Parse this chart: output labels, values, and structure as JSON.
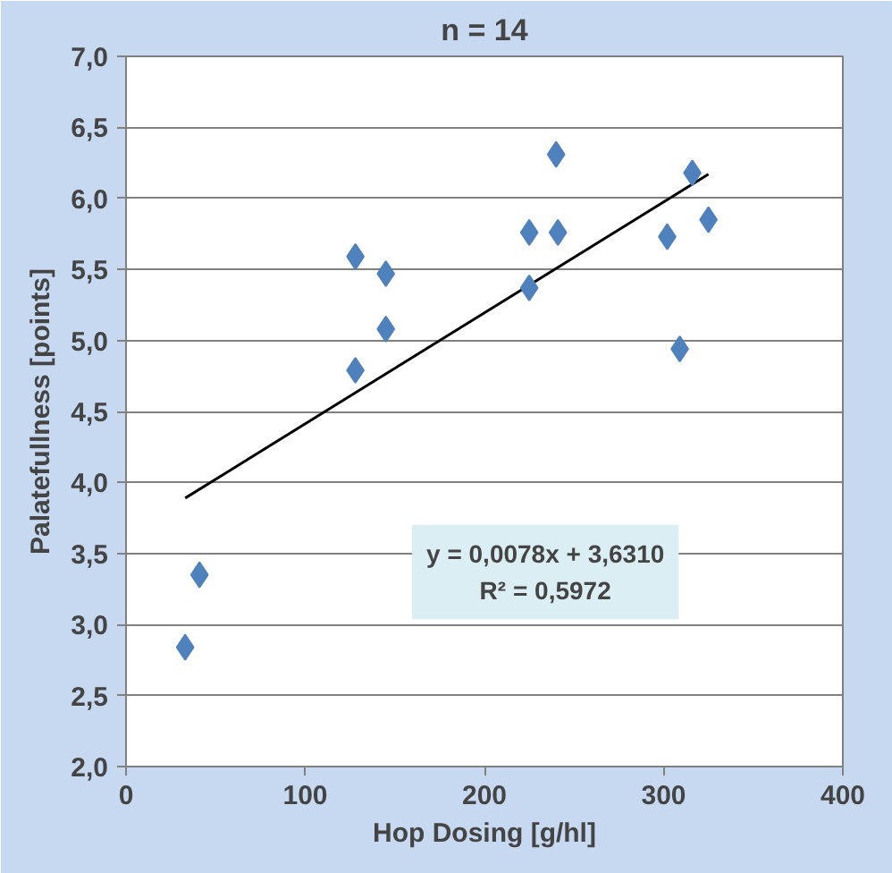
{
  "chart_data": {
    "type": "scatter",
    "title": "n = 14",
    "xlabel": "Hop Dosing [g/hl]",
    "ylabel": "Palatefullness [points]",
    "series": [
      {
        "color": "#4f81bd",
        "marker": "diamond",
        "x": [
          33,
          41,
          128,
          145,
          145,
          128,
          225,
          225,
          240,
          241,
          302,
          309,
          316,
          325
        ],
        "values": [
          2.84,
          3.35,
          5.59,
          5.47,
          5.08,
          4.79,
          5.76,
          5.37,
          6.31,
          5.76,
          5.73,
          4.94,
          6.18,
          5.85
        ]
      },
      {
        "type": "line",
        "color": "#000000",
        "line_style": "solid",
        "marker": "none",
        "x": [
          33,
          325
        ],
        "values": [
          3.89,
          6.17
        ]
      }
    ],
    "annotations": [
      "y = 0,0078x + 3,6310",
      "R² = 0,5972"
    ],
    "xlim": [
      0,
      400
    ],
    "xticks": [
      0,
      100,
      200,
      300,
      400
    ],
    "ylim": [
      2,
      7
    ],
    "yticks": [
      {
        "value": 2,
        "label": "2,0"
      },
      {
        "value": 2.5,
        "label": "2,5"
      },
      {
        "value": 3,
        "label": "3,0"
      },
      {
        "value": 3.5,
        "label": "3,5"
      },
      {
        "value": 4,
        "label": "4,0"
      },
      {
        "value": 4.5,
        "label": "4,5"
      },
      {
        "value": 5,
        "label": "5,0"
      },
      {
        "value": 5.5,
        "label": "5,5"
      },
      {
        "value": 6,
        "label": "6,0"
      },
      {
        "value": 6.5,
        "label": "6,5"
      },
      {
        "value": 7,
        "label": "7,0"
      }
    ],
    "grid": "y"
  }
}
